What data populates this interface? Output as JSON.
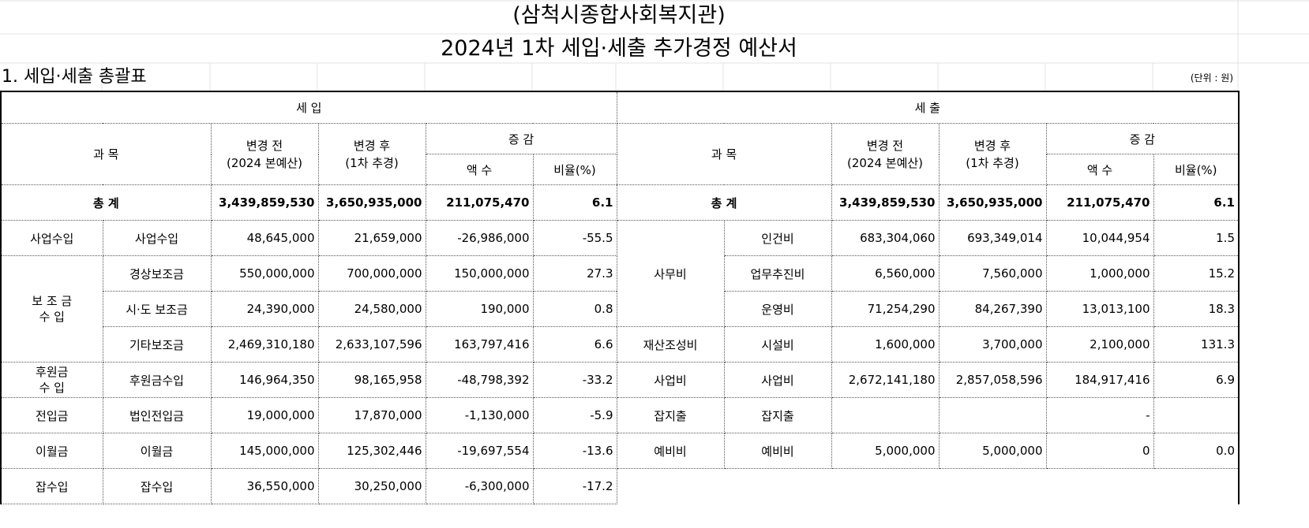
{
  "title_line1": "(삼척시종합사회복지관)",
  "title_line2": "2024년 1차 세입·세출 추가경정 예산서",
  "section_title": "1. 세입·세출 총괄표",
  "unit_label": "(단위 : 원)",
  "revenue": {
    "header": "세      입",
    "col_subject": "과 목",
    "col_before_l1": "변경 전",
    "col_before_l2": "(2024 본예산)",
    "col_after_l1": "변경 후",
    "col_after_l2": "(1차 추경)",
    "col_change": "증 감",
    "col_amount": "액 수",
    "col_ratio": "비율(%)",
    "total": {
      "label": "총 계",
      "before": "3,439,859,530",
      "after": "3,650,935,000",
      "amount": "211,075,470",
      "ratio": "6.1"
    },
    "rows": [
      {
        "group": "사업수입",
        "item": "사업수입",
        "before": "48,645,000",
        "after": "21,659,000",
        "amount": "-26,986,000",
        "ratio": "-55.5"
      },
      {
        "group": "보 조 금\n수    입",
        "item": "경상보조금",
        "before": "550,000,000",
        "after": "700,000,000",
        "amount": "150,000,000",
        "ratio": "27.3"
      },
      {
        "group": "",
        "item": "시·도 보조금",
        "before": "24,390,000",
        "after": "24,580,000",
        "amount": "190,000",
        "ratio": "0.8"
      },
      {
        "group": "",
        "item": "기타보조금",
        "before": "2,469,310,180",
        "after": "2,633,107,596",
        "amount": "163,797,416",
        "ratio": "6.6"
      },
      {
        "group": "후원금\n수  입",
        "item": "후원금수입",
        "before": "146,964,350",
        "after": "98,165,958",
        "amount": "-48,798,392",
        "ratio": "-33.2"
      },
      {
        "group": "전입금",
        "item": "법인전입금",
        "before": "19,000,000",
        "after": "17,870,000",
        "amount": "-1,130,000",
        "ratio": "-5.9"
      },
      {
        "group": "이월금",
        "item": "이월금",
        "before": "145,000,000",
        "after": "125,302,446",
        "amount": "-19,697,554",
        "ratio": "-13.6"
      },
      {
        "group": "잡수입",
        "item": "잡수입",
        "before": "36,550,000",
        "after": "30,250,000",
        "amount": "-6,300,000",
        "ratio": "-17.2"
      }
    ]
  },
  "expense": {
    "header": "세      출",
    "col_subject": "과 목",
    "col_before_l1": "변경 전",
    "col_before_l2": "(2024 본예산)",
    "col_after_l1": "변경 후",
    "col_after_l2": "(1차 추경)",
    "col_change": "증 감",
    "col_amount": "액 수",
    "col_ratio": "비율(%)",
    "total": {
      "label": "총 계",
      "before": "3,439,859,530",
      "after": "3,650,935,000",
      "amount": "211,075,470",
      "ratio": "6.1"
    },
    "rows": [
      {
        "group": "사무비",
        "item": "인건비",
        "before": "683,304,060",
        "after": "693,349,014",
        "amount": "10,044,954",
        "ratio": "1.5"
      },
      {
        "group": "",
        "item": "업무추진비",
        "before": "6,560,000",
        "after": "7,560,000",
        "amount": "1,000,000",
        "ratio": "15.2"
      },
      {
        "group": "",
        "item": "운영비",
        "before": "71,254,290",
        "after": "84,267,390",
        "amount": "13,013,100",
        "ratio": "18.3"
      },
      {
        "group": "재산조성비",
        "item": "시설비",
        "before": "1,600,000",
        "after": "3,700,000",
        "amount": "2,100,000",
        "ratio": "131.3"
      },
      {
        "group": "사업비",
        "item": "사업비",
        "before": "2,672,141,180",
        "after": "2,857,058,596",
        "amount": "184,917,416",
        "ratio": "6.9"
      },
      {
        "group": "잡지출",
        "item": "잡지출",
        "before": "",
        "after": "",
        "amount": "-",
        "ratio": ""
      },
      {
        "group": "예비비",
        "item": "예비비",
        "before": "5,000,000",
        "after": "5,000,000",
        "amount": "0",
        "ratio": "0.0"
      }
    ]
  }
}
